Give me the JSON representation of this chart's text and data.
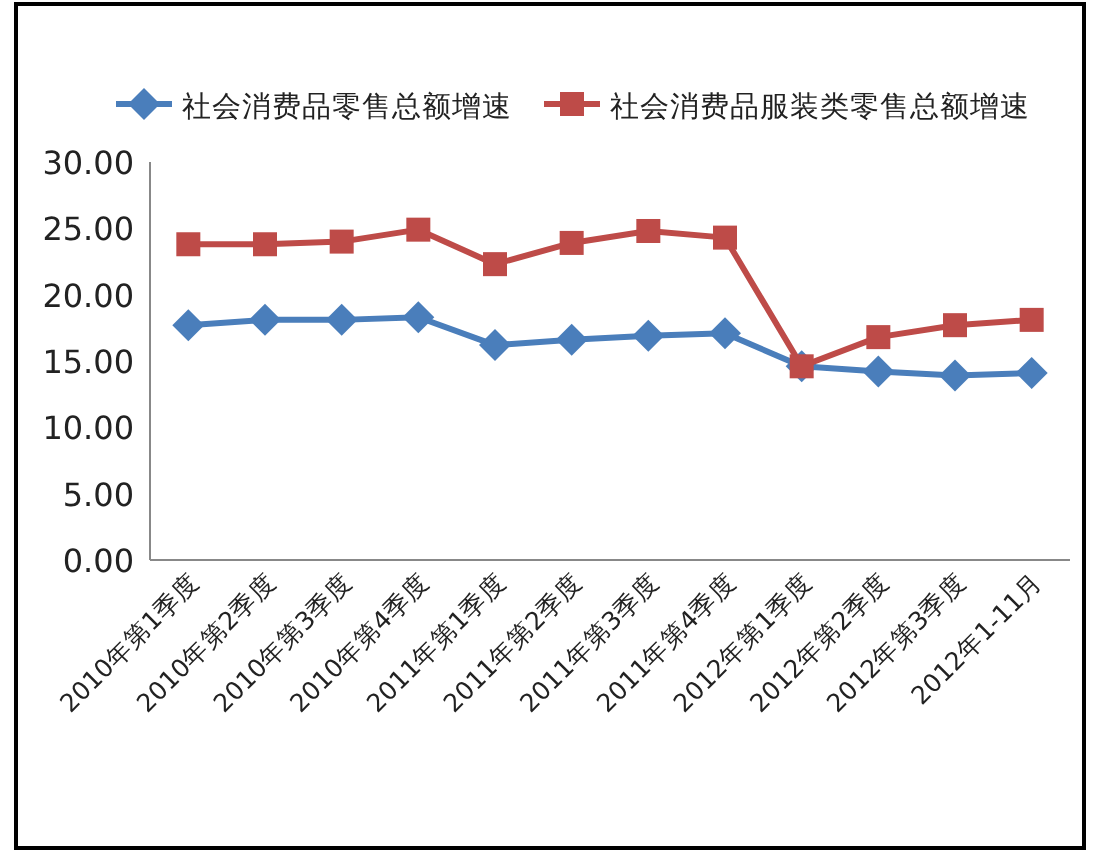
{
  "chart_data": {
    "type": "line",
    "categories": [
      "2010年第1季度",
      "2010年第2季度",
      "2010年第3季度",
      "2010年第4季度",
      "2011年第1季度",
      "2011年第2季度",
      "2011年第3季度",
      "2011年第4季度",
      "2012年第1季度",
      "2012年第2季度",
      "2012年第3季度",
      "2012年1-11月"
    ],
    "series": [
      {
        "name": "社会消费品零售总额增速",
        "color": "#4a7ebb",
        "marker": "diamond",
        "values": [
          17.7,
          18.1,
          18.1,
          18.3,
          16.2,
          16.6,
          16.9,
          17.1,
          14.6,
          14.2,
          13.9,
          14.1
        ]
      },
      {
        "name": "社会消费品服装类零售总额增速",
        "color": "#be4b48",
        "marker": "square",
        "values": [
          23.8,
          23.8,
          24.0,
          24.9,
          22.3,
          23.9,
          24.8,
          24.3,
          14.6,
          16.8,
          17.7,
          18.1
        ]
      }
    ],
    "ylim": [
      0,
      30
    ],
    "yticks": [
      {
        "value": 0,
        "label": "0.00"
      },
      {
        "value": 5,
        "label": "5.00"
      },
      {
        "value": 10,
        "label": "10.00"
      },
      {
        "value": 15,
        "label": "15.00"
      },
      {
        "value": 20,
        "label": "20.00"
      },
      {
        "value": 25,
        "label": "25.00"
      },
      {
        "value": 30,
        "label": "30.00"
      }
    ],
    "grid": false,
    "legend": "top",
    "line_style": "solid"
  }
}
